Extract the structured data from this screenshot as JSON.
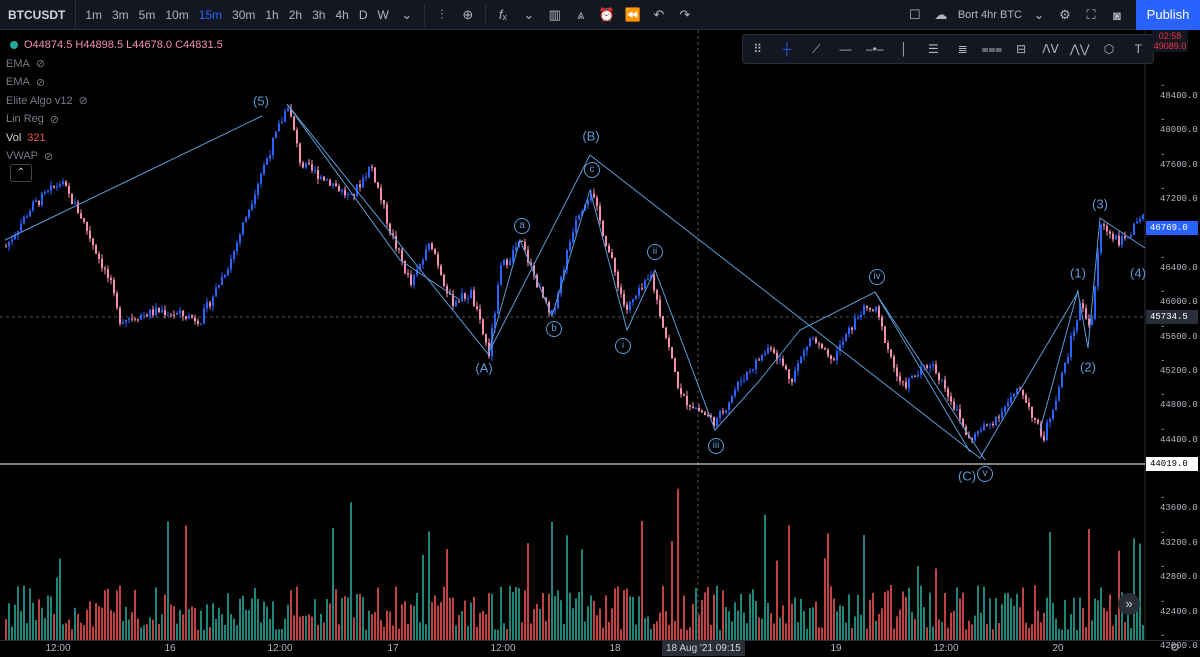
{
  "toolbar": {
    "symbol": "BTCUSDT",
    "intervals": [
      {
        "label": "1m",
        "active": false
      },
      {
        "label": "3m",
        "active": false
      },
      {
        "label": "5m",
        "active": false
      },
      {
        "label": "10m",
        "active": false
      },
      {
        "label": "15m",
        "active": true
      },
      {
        "label": "30m",
        "active": false
      },
      {
        "label": "1h",
        "active": false
      },
      {
        "label": "2h",
        "active": false
      },
      {
        "label": "3h",
        "active": false
      },
      {
        "label": "4h",
        "active": false
      },
      {
        "label": "D",
        "active": false
      },
      {
        "label": "W",
        "active": false
      }
    ],
    "icons": [
      "chevron-down-icon",
      "compare-icon",
      "add-symbol-icon",
      "indicators-icon",
      "chart-type-icon",
      "templates-icon",
      "alert-icon",
      "replay-icon",
      "undo-icon",
      "redo-icon"
    ],
    "layout_name": "Bort 4hr BTC",
    "publish_label": "Publish"
  },
  "legend": {
    "ohlc": "O44874.5 H44898.5 L44678.0 C44831.5",
    "indicators": [
      "EMA",
      "EMA",
      "Elite Algo v12",
      "Lin Reg"
    ],
    "vol_label": "Vol",
    "vol_value": "321",
    "vwap": "VWAP"
  },
  "countdown": {
    "time": "02:58",
    "price": "49089.0"
  },
  "price_axis": {
    "labels": [
      "48400.0",
      "48000.0",
      "47600.0",
      "47200.0",
      "46400.0",
      "46000.0",
      "45600.0",
      "45200.0",
      "44800.0",
      "44400.0",
      "43600.0",
      "43200.0",
      "42800.0",
      "42400.0",
      "42000.0"
    ],
    "last_price": "46769.0",
    "crosshair_price": "45734.5",
    "line_price": "44019.0",
    "colors": {
      "last": "#2962ff",
      "crosshair": "#2a2e39",
      "line": "#ffffff"
    }
  },
  "time_axis": {
    "labels": [
      "12:00",
      "16",
      "12:00",
      "17",
      "12:00",
      "18",
      "19",
      "12:00",
      "20"
    ],
    "current": "18 Aug '21  09:15"
  },
  "elliott_labels": {
    "major": [
      "(5)",
      "(B)",
      "(A)",
      "(C)",
      "(1)",
      "(2)",
      "(3)",
      "(4)"
    ],
    "minor": [
      "a",
      "b",
      "c",
      "ii",
      "i",
      "iii",
      "iv",
      "v"
    ]
  },
  "colors": {
    "up": "#2962ff",
    "down": "#f48fb1",
    "wave": "#5b9bd5",
    "vol_up": "#26a69a",
    "vol_down": "#ef5350"
  }
}
